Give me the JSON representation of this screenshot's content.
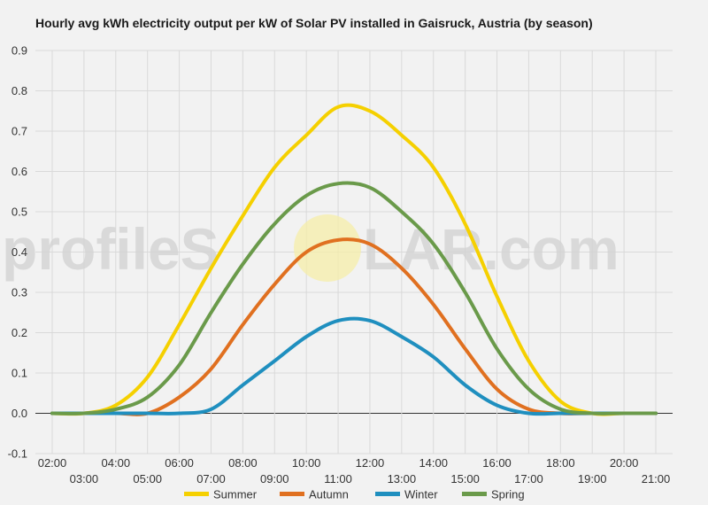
{
  "chart_data": {
    "type": "line",
    "title": "Hourly avg kWh electricity output per kW of Solar PV installed in Gaisruck, Austria (by season)",
    "xlabel": "",
    "ylabel": "",
    "ylim": [
      -0.1,
      0.9
    ],
    "yticks": [
      "-0.1",
      "0.0",
      "0.1",
      "0.2",
      "0.3",
      "0.4",
      "0.5",
      "0.6",
      "0.7",
      "0.8",
      "0.9"
    ],
    "x_tick_labels": [
      "02:00",
      "03:00",
      "04:00",
      "05:00",
      "06:00",
      "07:00",
      "08:00",
      "09:00",
      "10:00",
      "11:00",
      "12:00",
      "13:00",
      "14:00",
      "15:00",
      "16:00",
      "17:00",
      "18:00",
      "19:00",
      "20:00",
      "21:00"
    ],
    "grid": true,
    "legend_position": "bottom",
    "series": [
      {
        "name": "Summer",
        "color": "#f5d000",
        "values": [
          0.0,
          0.0,
          0.02,
          0.09,
          0.22,
          0.36,
          0.49,
          0.61,
          0.69,
          0.76,
          0.75,
          0.69,
          0.61,
          0.47,
          0.29,
          0.13,
          0.03,
          0.0,
          0.0,
          0.0
        ]
      },
      {
        "name": "Autumn",
        "color": "#e07020",
        "values": [
          0.0,
          0.0,
          0.0,
          0.0,
          0.04,
          0.11,
          0.22,
          0.32,
          0.4,
          0.43,
          0.42,
          0.36,
          0.27,
          0.16,
          0.06,
          0.01,
          0.0,
          0.0,
          0.0,
          0.0
        ]
      },
      {
        "name": "Winter",
        "color": "#1f8fbf",
        "values": [
          0.0,
          0.0,
          0.0,
          0.0,
          0.0,
          0.01,
          0.07,
          0.13,
          0.19,
          0.23,
          0.23,
          0.19,
          0.14,
          0.07,
          0.02,
          0.0,
          0.0,
          0.0,
          0.0,
          0.0
        ]
      },
      {
        "name": "Spring",
        "color": "#6a9a4a",
        "values": [
          0.0,
          0.0,
          0.01,
          0.04,
          0.12,
          0.25,
          0.37,
          0.47,
          0.54,
          0.57,
          0.56,
          0.5,
          0.42,
          0.3,
          0.16,
          0.06,
          0.01,
          0.0,
          0.0,
          0.0
        ]
      }
    ]
  },
  "watermark": {
    "text_left": "profileS",
    "text_right": "LAR.com"
  }
}
